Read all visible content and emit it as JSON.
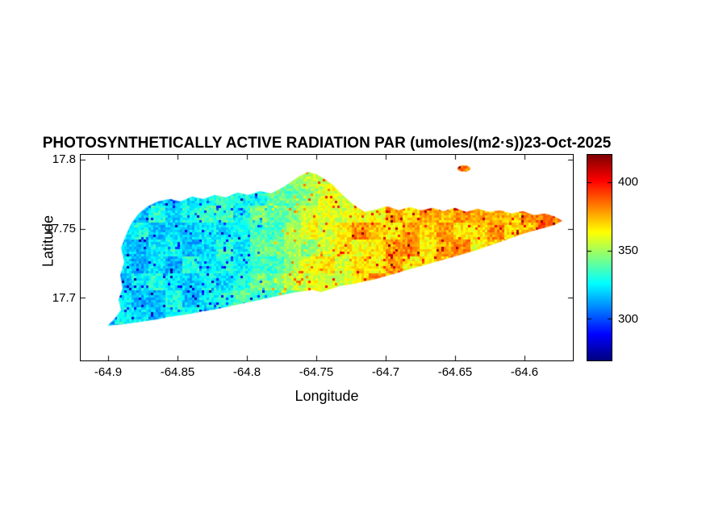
{
  "chart_data": {
    "type": "heatmap",
    "title": "PHOTOSYNTHETICALLY ACTIVE RADIATION PAR (umoles/(m2·s))23-Oct-2025",
    "units": "umoles/(m2·s)",
    "date": "23-Oct-2025",
    "xlabel": "Longitude",
    "ylabel": "Latitude",
    "xlim": [
      -64.92,
      -64.5653
    ],
    "ylim": [
      17.6547,
      17.8035
    ],
    "xticks": [
      -64.9,
      -64.85,
      -64.8,
      -64.75,
      -64.7,
      -64.65,
      -64.6
    ],
    "xtick_labels": [
      "-64.9",
      "-64.85",
      "-64.8",
      "-64.75",
      "-64.7",
      "-64.65",
      "-64.6"
    ],
    "yticks": [
      17.8,
      17.75,
      17.7
    ],
    "ytick_labels": [
      "17.8",
      "17.75",
      "17.7"
    ],
    "grid": false,
    "colorbar": {
      "colormap": "jet",
      "clim": [
        270,
        420
      ],
      "ticks": [
        400,
        350,
        300
      ],
      "tick_labels": [
        "400",
        "350",
        "300"
      ],
      "position": "right"
    },
    "par_lon_profile": [
      {
        "lon": -64.92,
        "value": 322
      },
      {
        "lon": -64.84,
        "value": 323
      },
      {
        "lon": -64.8,
        "value": 332
      },
      {
        "lon": -64.77,
        "value": 345
      },
      {
        "lon": -64.745,
        "value": 362
      },
      {
        "lon": -64.72,
        "value": 370
      },
      {
        "lon": -64.68,
        "value": 374
      },
      {
        "lon": -64.62,
        "value": 375
      },
      {
        "lon": -64.57,
        "value": 384
      }
    ],
    "noise": {
      "fine_amp": 18,
      "patch_amp": 20,
      "speck_fraction": 0.05,
      "speck_low": 290,
      "speck_high": 405
    },
    "islet": {
      "lon": -64.6438,
      "lat": 17.7936,
      "rlon": 0.0047,
      "rlat": 0.0023,
      "value": 386
    },
    "island_polygon": [
      [
        -64.9008,
        17.6797
      ],
      [
        -64.8956,
        17.6849
      ],
      [
        -64.8909,
        17.6913
      ],
      [
        -64.8927,
        17.6988
      ],
      [
        -64.8898,
        17.707
      ],
      [
        -64.8915,
        17.7163
      ],
      [
        -64.8886,
        17.7262
      ],
      [
        -64.8909,
        17.7361
      ],
      [
        -64.8874,
        17.7454
      ],
      [
        -64.8834,
        17.7541
      ],
      [
        -64.8781,
        17.7611
      ],
      [
        -64.8717,
        17.7663
      ],
      [
        -64.8642,
        17.7698
      ],
      [
        -64.856,
        17.7715
      ],
      [
        -64.8479,
        17.7698
      ],
      [
        -64.8398,
        17.7733
      ],
      [
        -64.8316,
        17.7715
      ],
      [
        -64.8235,
        17.7744
      ],
      [
        -64.8153,
        17.7727
      ],
      [
        -64.8072,
        17.7762
      ],
      [
        -64.7991,
        17.7744
      ],
      [
        -64.7909,
        17.7773
      ],
      [
        -64.7828,
        17.7756
      ],
      [
        -64.7747,
        17.7797
      ],
      [
        -64.7688,
        17.7837
      ],
      [
        -64.763,
        17.7878
      ],
      [
        -64.756,
        17.7913
      ],
      [
        -64.7502,
        17.7895
      ],
      [
        -64.7444,
        17.7861
      ],
      [
        -64.7386,
        17.782
      ],
      [
        -64.734,
        17.7773
      ],
      [
        -64.7293,
        17.7727
      ],
      [
        -64.7247,
        17.7686
      ],
      [
        -64.72,
        17.7651
      ],
      [
        -64.7153,
        17.7622
      ],
      [
        -64.7072,
        17.764
      ],
      [
        -64.6991,
        17.7663
      ],
      [
        -64.6909,
        17.7634
      ],
      [
        -64.6828,
        17.7657
      ],
      [
        -64.6747,
        17.7634
      ],
      [
        -64.6665,
        17.7651
      ],
      [
        -64.6584,
        17.7628
      ],
      [
        -64.6502,
        17.7651
      ],
      [
        -64.6421,
        17.7622
      ],
      [
        -64.634,
        17.7645
      ],
      [
        -64.6258,
        17.7622
      ],
      [
        -64.6177,
        17.7634
      ],
      [
        -64.6095,
        17.7611
      ],
      [
        -64.6014,
        17.7628
      ],
      [
        -64.5933,
        17.7599
      ],
      [
        -64.5851,
        17.7611
      ],
      [
        -64.5781,
        17.7587
      ],
      [
        -64.5729,
        17.7558
      ],
      [
        -64.5781,
        17.7529
      ],
      [
        -64.5863,
        17.7506
      ],
      [
        -64.5944,
        17.7483
      ],
      [
        -64.6026,
        17.7459
      ],
      [
        -64.6107,
        17.743
      ],
      [
        -64.6188,
        17.7401
      ],
      [
        -64.627,
        17.7372
      ],
      [
        -64.6351,
        17.7343
      ],
      [
        -64.6433,
        17.732
      ],
      [
        -64.6514,
        17.7297
      ],
      [
        -64.6595,
        17.7273
      ],
      [
        -64.6677,
        17.725
      ],
      [
        -64.6758,
        17.7227
      ],
      [
        -64.684,
        17.7204
      ],
      [
        -64.6921,
        17.718
      ],
      [
        -64.7002,
        17.7157
      ],
      [
        -64.7084,
        17.7134
      ],
      [
        -64.7165,
        17.7116
      ],
      [
        -64.7247,
        17.7099
      ],
      [
        -64.7328,
        17.7087
      ],
      [
        -64.7398,
        17.7064
      ],
      [
        -64.7467,
        17.7041
      ],
      [
        -64.7526,
        17.7058
      ],
      [
        -64.7595,
        17.7047
      ],
      [
        -64.7677,
        17.7035
      ],
      [
        -64.7758,
        17.7018
      ],
      [
        -64.784,
        17.7
      ],
      [
        -64.7921,
        17.6983
      ],
      [
        -64.8002,
        17.6965
      ],
      [
        -64.8084,
        17.6948
      ],
      [
        -64.8165,
        17.693
      ],
      [
        -64.8247,
        17.6913
      ],
      [
        -64.8328,
        17.6901
      ],
      [
        -64.8409,
        17.6884
      ],
      [
        -64.8491,
        17.6872
      ],
      [
        -64.8572,
        17.6861
      ],
      [
        -64.8653,
        17.6843
      ],
      [
        -64.8735,
        17.6832
      ],
      [
        -64.8816,
        17.682
      ],
      [
        -64.8898,
        17.6808
      ],
      [
        -64.8967,
        17.6802
      ]
    ]
  }
}
